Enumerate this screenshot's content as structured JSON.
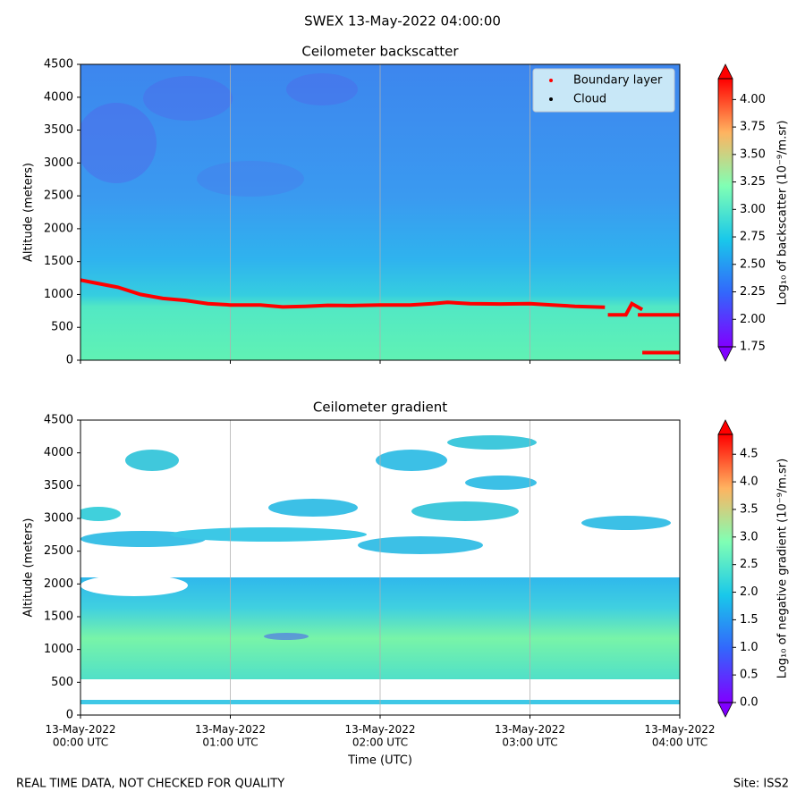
{
  "title": "SWEX 13-May-2022 04:00:00",
  "footer_left": "REAL TIME DATA, NOT CHECKED FOR QUALITY",
  "footer_right": "Site: ISS2",
  "chart_data": [
    {
      "type": "heatmap",
      "title": "Ceilometer backscatter",
      "y_label": "Altitude (meters)",
      "xlim": [
        0,
        4
      ],
      "xticks": [
        0,
        1,
        2,
        3,
        4
      ],
      "grid": "x",
      "ylim": [
        0,
        4500
      ],
      "yticks": [
        0,
        500,
        1000,
        1500,
        2000,
        2500,
        3000,
        3500,
        4000,
        4500
      ],
      "legend": "upper right",
      "series": [
        {
          "name": "Boundary layer",
          "color": "#ff0000",
          "x": [
            0,
            0.1,
            0.25,
            0.4,
            0.55,
            0.7,
            0.85,
            1,
            1.2,
            1.35,
            1.5,
            1.65,
            1.8,
            2,
            2.2,
            2.35,
            2.45,
            2.6,
            2.8,
            3,
            3.15,
            3.3,
            3.5,
            null,
            3.52,
            3.64,
            3.68,
            3.75,
            null,
            3.72,
            4,
            null,
            3.75,
            4
          ],
          "values": [
            1220,
            1175,
            1110,
            1000,
            940,
            910,
            860,
            840,
            840,
            810,
            820,
            835,
            830,
            840,
            840,
            860,
            880,
            860,
            855,
            860,
            840,
            820,
            805,
            null,
            690,
            690,
            860,
            770,
            null,
            690,
            690,
            null,
            115,
            115
          ]
        },
        {
          "name": "Cloud",
          "color": "#000000",
          "x": [],
          "values": []
        }
      ],
      "colorbar": {
        "label": "Log₁₀ of backscatter (10⁻⁹/m.sr)",
        "colormap": "rainbow",
        "lim": [
          1.75,
          4.19
        ],
        "extend": "both",
        "ticks": [
          1.75,
          {
            "value": 2,
            "label": "2.00"
          },
          2.25,
          {
            "value": 2.5,
            "label": "2.50"
          },
          2.75,
          {
            "value": 3,
            "label": "3.00"
          },
          3.25,
          {
            "value": 3.5,
            "label": "3.50"
          },
          3.75,
          {
            "value": 4,
            "label": "4.00"
          }
        ]
      }
    },
    {
      "type": "heatmap",
      "title": "Ceilometer gradient",
      "y_label": "Altitude (meters)",
      "x_label": "Time (UTC)",
      "xlim": [
        0,
        4
      ],
      "grid": "x",
      "xticks": [
        {
          "value": 0,
          "label": "13-May-2022\n00:00 UTC"
        },
        {
          "value": 1,
          "label": "13-May-2022\n01:00 UTC"
        },
        {
          "value": 2,
          "label": "13-May-2022\n02:00 UTC"
        },
        {
          "value": 3,
          "label": "13-May-2022\n03:00 UTC"
        },
        {
          "value": 4,
          "label": "13-May-2022\n04:00 UTC"
        }
      ],
      "ylim": [
        0,
        4500
      ],
      "yticks": [
        0,
        500,
        1000,
        1500,
        2000,
        2500,
        3000,
        3500,
        4000,
        4500
      ],
      "colorbar": {
        "label": "Log₁₀ of negative gradient (10⁻⁹/m.sr)",
        "colormap": "rainbow",
        "lim": [
          0,
          4.86
        ],
        "extend": "both",
        "ticks": [
          {
            "value": 0,
            "label": "0.0"
          },
          0.5,
          {
            "value": 1,
            "label": "1.0"
          },
          1.5,
          {
            "value": 2,
            "label": "2.0"
          },
          2.5,
          {
            "value": 3,
            "label": "3.0"
          },
          3.5,
          {
            "value": 4,
            "label": "4.0"
          },
          4.5
        ]
      }
    }
  ]
}
